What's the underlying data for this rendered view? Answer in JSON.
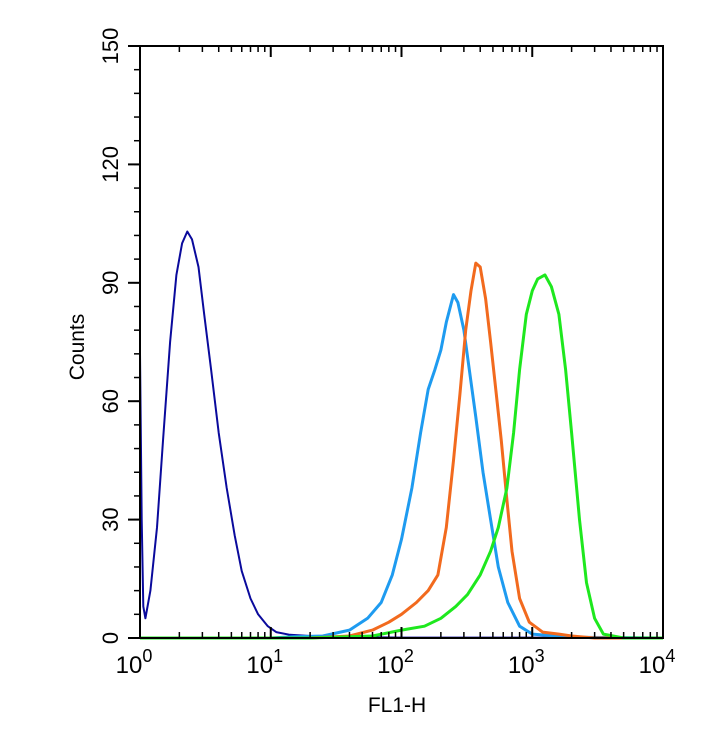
{
  "chart_data": {
    "type": "line",
    "xlabel": "FL1-H",
    "ylabel": "Counts",
    "x_scale": "log",
    "xlim": [
      1,
      10000
    ],
    "ylim": [
      0,
      150
    ],
    "grid": false,
    "x_ticks": [
      {
        "value": 1,
        "base": "10",
        "exp": "0"
      },
      {
        "value": 10,
        "base": "10",
        "exp": "1"
      },
      {
        "value": 100,
        "base": "10",
        "exp": "2"
      },
      {
        "value": 1000,
        "base": "10",
        "exp": "3"
      },
      {
        "value": 10000,
        "base": "10",
        "exp": "4"
      }
    ],
    "y_ticks": [
      0,
      30,
      60,
      90,
      120,
      150
    ],
    "series": [
      {
        "color": "#0a0a9c",
        "points": [
          [
            1.0,
            72
          ],
          [
            1.03,
            30
          ],
          [
            1.06,
            8
          ],
          [
            1.1,
            5
          ],
          [
            1.2,
            12
          ],
          [
            1.35,
            28
          ],
          [
            1.5,
            50
          ],
          [
            1.7,
            75
          ],
          [
            1.9,
            92
          ],
          [
            2.1,
            100
          ],
          [
            2.3,
            103
          ],
          [
            2.5,
            101
          ],
          [
            2.8,
            94
          ],
          [
            3.1,
            82
          ],
          [
            3.5,
            68
          ],
          [
            4.0,
            52
          ],
          [
            4.6,
            38
          ],
          [
            5.3,
            26
          ],
          [
            6.0,
            17
          ],
          [
            7.0,
            10
          ],
          [
            8.0,
            6
          ],
          [
            9.5,
            3
          ],
          [
            11,
            1.5
          ],
          [
            14,
            0.8
          ],
          [
            20,
            0.5
          ],
          [
            30,
            0.3
          ],
          [
            50,
            0.2
          ],
          [
            100,
            0.1
          ],
          [
            1000,
            0.1
          ],
          [
            10000,
            0
          ]
        ]
      },
      {
        "color": "#1e9bf0",
        "points": [
          [
            1.0,
            0
          ],
          [
            10,
            0
          ],
          [
            15,
            0.3
          ],
          [
            25,
            0.5
          ],
          [
            40,
            2
          ],
          [
            55,
            5
          ],
          [
            70,
            9
          ],
          [
            85,
            16
          ],
          [
            100,
            25
          ],
          [
            120,
            38
          ],
          [
            140,
            52
          ],
          [
            160,
            63
          ],
          [
            180,
            68
          ],
          [
            200,
            73
          ],
          [
            220,
            80
          ],
          [
            250,
            87
          ],
          [
            270,
            85
          ],
          [
            300,
            78
          ],
          [
            330,
            68
          ],
          [
            370,
            56
          ],
          [
            420,
            42
          ],
          [
            480,
            30
          ],
          [
            550,
            18
          ],
          [
            650,
            9
          ],
          [
            800,
            3
          ],
          [
            1000,
            1
          ],
          [
            2000,
            0.2
          ],
          [
            10000,
            0
          ]
        ]
      },
      {
        "color": "#f26a1e",
        "points": [
          [
            1.0,
            0
          ],
          [
            20,
            0
          ],
          [
            40,
            0.5
          ],
          [
            60,
            2
          ],
          [
            80,
            4
          ],
          [
            100,
            6
          ],
          [
            130,
            9
          ],
          [
            160,
            12
          ],
          [
            190,
            16
          ],
          [
            220,
            28
          ],
          [
            250,
            45
          ],
          [
            280,
            62
          ],
          [
            310,
            78
          ],
          [
            340,
            88
          ],
          [
            370,
            95
          ],
          [
            400,
            94
          ],
          [
            440,
            86
          ],
          [
            480,
            75
          ],
          [
            530,
            62
          ],
          [
            580,
            50
          ],
          [
            640,
            35
          ],
          [
            700,
            22
          ],
          [
            800,
            10
          ],
          [
            950,
            4
          ],
          [
            1200,
            1.5
          ],
          [
            1600,
            1
          ],
          [
            2000,
            0.5
          ],
          [
            3000,
            0
          ],
          [
            10000,
            0
          ]
        ]
      },
      {
        "color": "#1ee81e",
        "points": [
          [
            1.0,
            0
          ],
          [
            20,
            0
          ],
          [
            60,
            0.5
          ],
          [
            100,
            2
          ],
          [
            150,
            3
          ],
          [
            200,
            5
          ],
          [
            260,
            8
          ],
          [
            320,
            11
          ],
          [
            400,
            16
          ],
          [
            480,
            22
          ],
          [
            550,
            28
          ],
          [
            640,
            38
          ],
          [
            720,
            52
          ],
          [
            800,
            68
          ],
          [
            900,
            82
          ],
          [
            1000,
            88
          ],
          [
            1100,
            91
          ],
          [
            1250,
            92
          ],
          [
            1400,
            89
          ],
          [
            1600,
            82
          ],
          [
            1800,
            68
          ],
          [
            2000,
            52
          ],
          [
            2300,
            30
          ],
          [
            2600,
            14
          ],
          [
            3000,
            5
          ],
          [
            3500,
            1
          ],
          [
            5000,
            0
          ],
          [
            10000,
            0
          ]
        ]
      }
    ]
  }
}
